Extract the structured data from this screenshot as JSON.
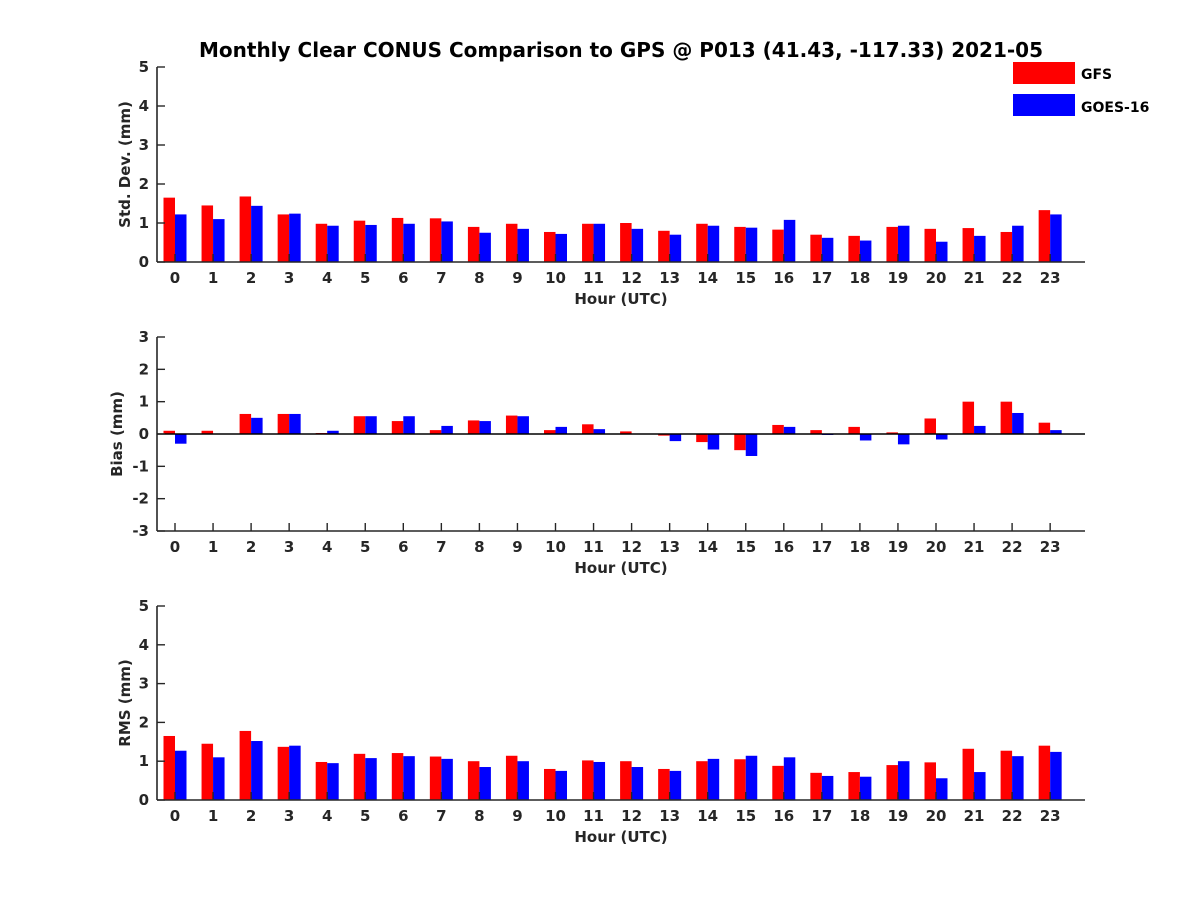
{
  "title": "Monthly Clear CONUS Comparison to GPS @ P013 (41.43, -117.33) 2021-05",
  "legend": [
    {
      "name": "GFS",
      "color": "#ff0000"
    },
    {
      "name": "GOES-16",
      "color": "#0000ff"
    }
  ],
  "chart_data": [
    {
      "type": "bar",
      "xlabel": "Hour (UTC)",
      "ylabel": "Std. Dev. (mm)",
      "ylim": [
        0,
        5
      ],
      "yticks": [
        0,
        1,
        2,
        3,
        4,
        5
      ],
      "categories": [
        "0",
        "1",
        "2",
        "3",
        "4",
        "5",
        "6",
        "7",
        "8",
        "9",
        "10",
        "11",
        "12",
        "13",
        "14",
        "15",
        "16",
        "17",
        "18",
        "19",
        "20",
        "21",
        "22",
        "23"
      ],
      "series": [
        {
          "name": "GFS",
          "values": [
            1.65,
            1.45,
            1.68,
            1.22,
            0.98,
            1.06,
            1.13,
            1.12,
            0.9,
            0.98,
            0.77,
            0.98,
            1.0,
            0.8,
            0.98,
            0.9,
            0.83,
            0.7,
            0.67,
            0.9,
            0.85,
            0.87,
            0.77,
            1.33
          ]
        },
        {
          "name": "GOES-16",
          "values": [
            1.22,
            1.1,
            1.44,
            1.24,
            0.93,
            0.95,
            0.98,
            1.04,
            0.75,
            0.85,
            0.72,
            0.98,
            0.85,
            0.7,
            0.93,
            0.88,
            1.08,
            0.62,
            0.55,
            0.93,
            0.52,
            0.67,
            0.93,
            1.22
          ]
        }
      ]
    },
    {
      "type": "bar",
      "xlabel": "Hour (UTC)",
      "ylabel": "Bias (mm)",
      "ylim": [
        -3,
        3
      ],
      "yticks": [
        -3,
        -2,
        -1,
        0,
        1,
        2,
        3
      ],
      "categories": [
        "0",
        "1",
        "2",
        "3",
        "4",
        "5",
        "6",
        "7",
        "8",
        "9",
        "10",
        "11",
        "12",
        "13",
        "14",
        "15",
        "16",
        "17",
        "18",
        "19",
        "20",
        "21",
        "22",
        "23"
      ],
      "series": [
        {
          "name": "GFS",
          "values": [
            0.1,
            0.1,
            0.62,
            0.62,
            0.03,
            0.55,
            0.4,
            0.12,
            0.42,
            0.57,
            0.12,
            0.3,
            0.08,
            -0.05,
            -0.25,
            -0.5,
            0.28,
            0.12,
            0.22,
            0.05,
            0.48,
            1.0,
            1.0,
            0.35
          ]
        },
        {
          "name": "GOES-16",
          "values": [
            -0.3,
            0.0,
            0.5,
            0.62,
            0.1,
            0.55,
            0.55,
            0.25,
            0.4,
            0.55,
            0.22,
            0.15,
            0.0,
            -0.22,
            -0.48,
            -0.68,
            0.22,
            -0.03,
            -0.2,
            -0.32,
            -0.17,
            0.25,
            0.65,
            0.12
          ]
        }
      ]
    },
    {
      "type": "bar",
      "xlabel": "Hour (UTC)",
      "ylabel": "RMS (mm)",
      "ylim": [
        0,
        5
      ],
      "yticks": [
        0,
        1,
        2,
        3,
        4,
        5
      ],
      "categories": [
        "0",
        "1",
        "2",
        "3",
        "4",
        "5",
        "6",
        "7",
        "8",
        "9",
        "10",
        "11",
        "12",
        "13",
        "14",
        "15",
        "16",
        "17",
        "18",
        "19",
        "20",
        "21",
        "22",
        "23"
      ],
      "series": [
        {
          "name": "GFS",
          "values": [
            1.65,
            1.45,
            1.78,
            1.37,
            0.98,
            1.19,
            1.21,
            1.12,
            1.0,
            1.14,
            0.8,
            1.02,
            1.0,
            0.8,
            1.0,
            1.05,
            0.88,
            0.7,
            0.72,
            0.9,
            0.97,
            1.32,
            1.27,
            1.4
          ]
        },
        {
          "name": "GOES-16",
          "values": [
            1.27,
            1.1,
            1.52,
            1.4,
            0.95,
            1.08,
            1.13,
            1.06,
            0.85,
            1.0,
            0.75,
            0.98,
            0.85,
            0.75,
            1.06,
            1.14,
            1.1,
            0.62,
            0.6,
            1.0,
            0.56,
            0.72,
            1.13,
            1.24
          ]
        }
      ]
    }
  ]
}
